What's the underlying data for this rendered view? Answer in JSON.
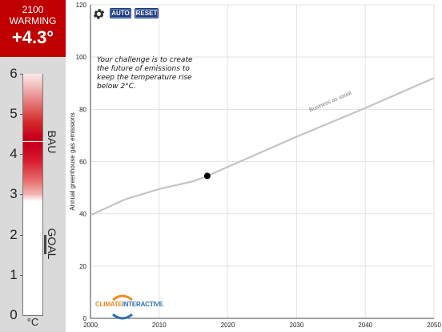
{
  "warming": {
    "year": "2100",
    "label": "WARMING",
    "value": "+4.3°"
  },
  "thermometer": {
    "scale": [
      "6",
      "5",
      "4",
      "3",
      "2",
      "1",
      "0"
    ],
    "bau_label": "BAU",
    "goal_label": "GOAL",
    "unit": "°C"
  },
  "controls": {
    "settings_icon": "gear-icon",
    "auto_label": "AUTO",
    "reset_label": "RESET"
  },
  "challenge_text": "Your challenge is to create the future of emissions to keep the temperature rise below 2°C.",
  "logo": {
    "part1": "CLIMATE",
    "part2": "INTERACTIVE"
  },
  "colors": {
    "warming_red": "#c00000",
    "button_blue": "#1c3a7e",
    "line_gray": "#c4c4c4",
    "sidebar_gray": "#dadada"
  },
  "chart_data": {
    "type": "line",
    "ylabel": "Annual greenhouse gas emissions",
    "xlabel": "",
    "xlim": [
      2000,
      2050
    ],
    "ylim": [
      0,
      120
    ],
    "x_ticks": [
      "2000",
      "2010",
      "2020",
      "2030",
      "2040",
      "2050"
    ],
    "y_ticks": [
      "0",
      "20",
      "40",
      "60",
      "80",
      "100",
      "120"
    ],
    "grid": true,
    "series": [
      {
        "name": "Business as usual",
        "x": [
          2000,
          2005,
          2010,
          2015,
          2017,
          2020,
          2030,
          2040,
          2050
        ],
        "y": [
          39.5,
          45.5,
          49.5,
          52.5,
          54.5,
          58,
          69.5,
          80.5,
          92
        ]
      }
    ],
    "marker": {
      "x": 2017,
      "y": 54.5
    }
  }
}
